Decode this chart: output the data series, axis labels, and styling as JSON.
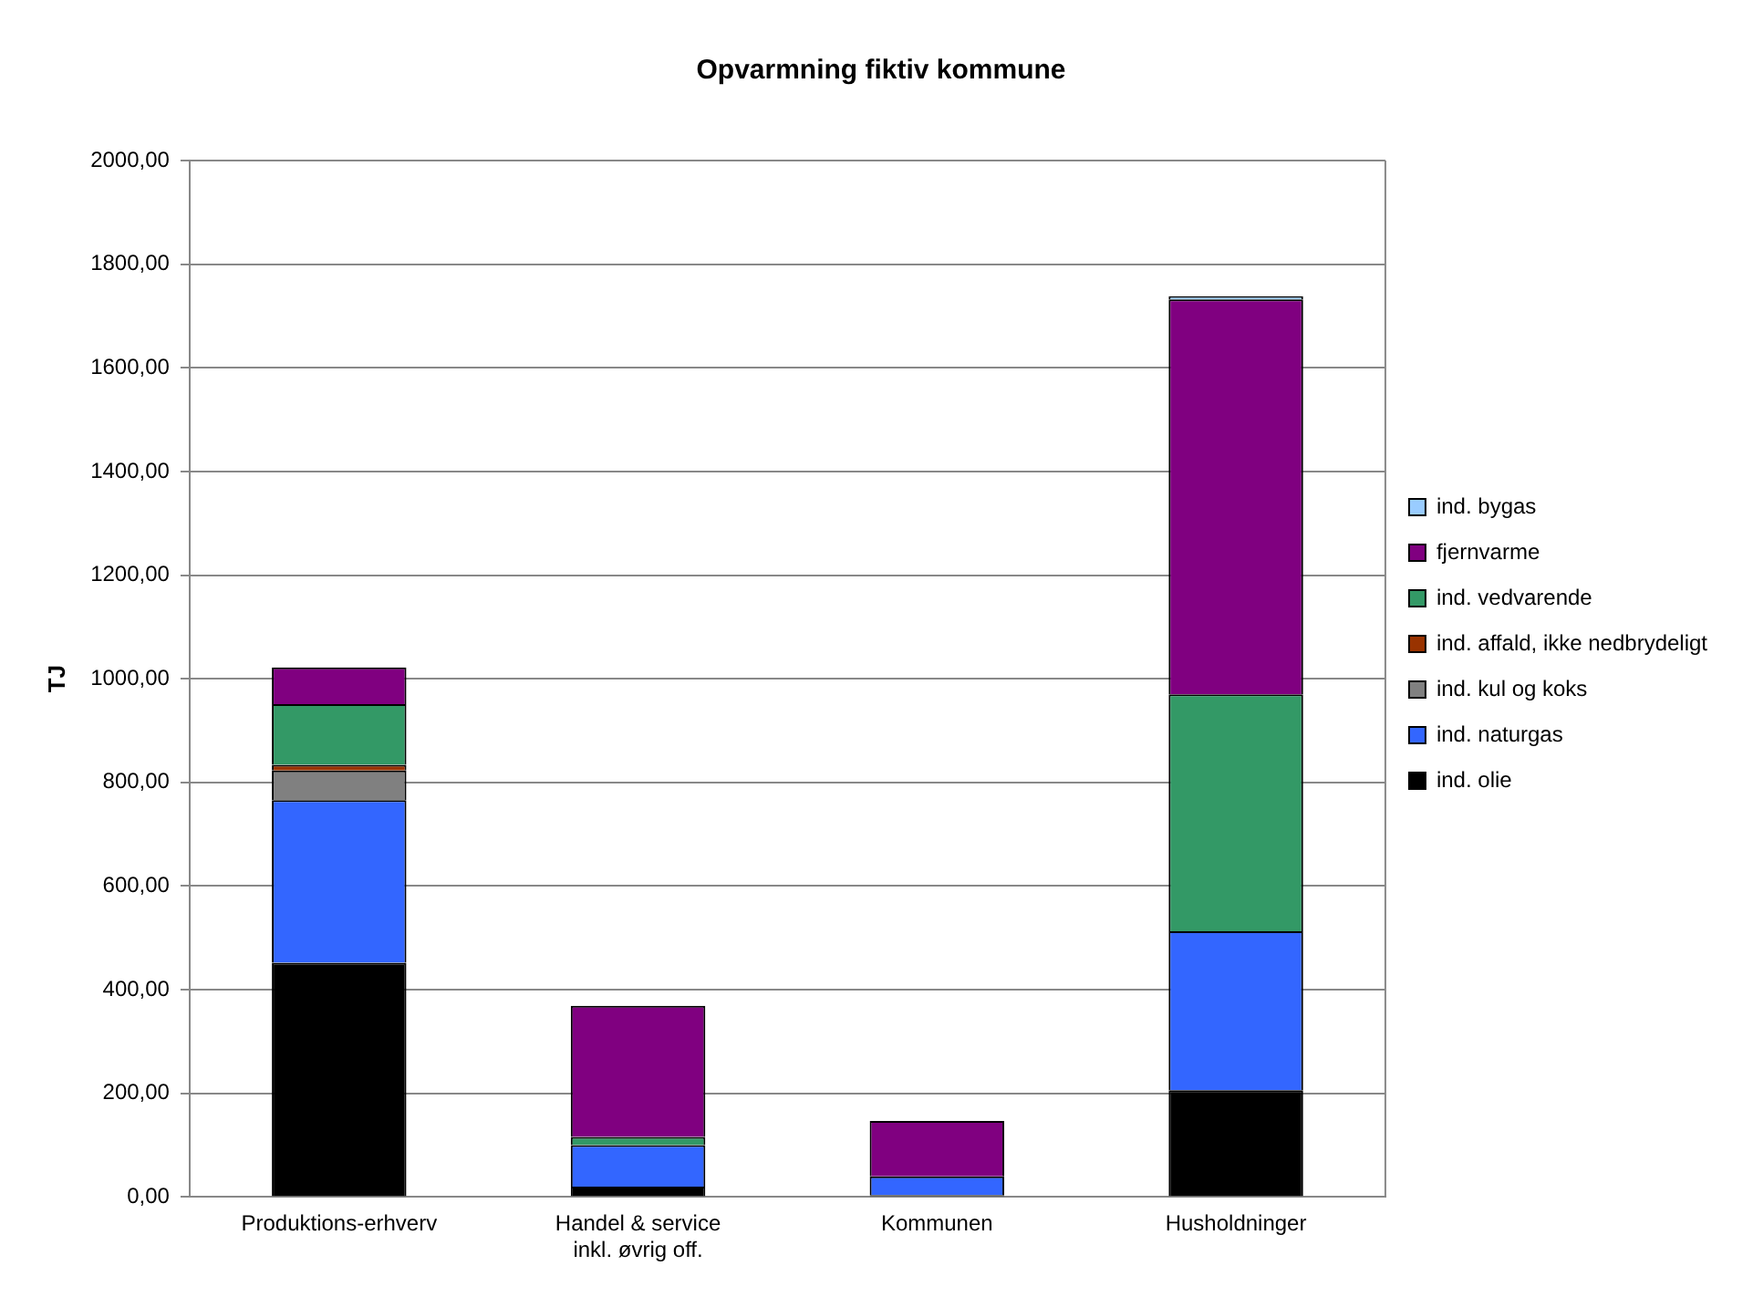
{
  "chart_data": {
    "type": "bar",
    "title": "Opvarmning fiktiv kommune",
    "ylabel": "TJ",
    "stacked": true,
    "categories": [
      "Produktions-erhverv",
      "Handel & service inkl. øvrig off.",
      "Kommunen",
      "Husholdninger"
    ],
    "series": [
      {
        "name": "ind. olie",
        "color": "#000000",
        "values": [
          452,
          20,
          4,
          206
        ]
      },
      {
        "name": "ind. naturgas",
        "color": "#3366ff",
        "values": [
          314,
          80,
          36,
          307
        ]
      },
      {
        "name": "ind. kul og koks",
        "color": "#808080",
        "values": [
          57,
          0,
          0,
          0
        ]
      },
      {
        "name": "ind. affald, ikke nedbrydeligt",
        "color": "#993300",
        "values": [
          11,
          0,
          0,
          0
        ]
      },
      {
        "name": "ind. vedvarende",
        "color": "#339966",
        "values": [
          117,
          16,
          0,
          457
        ]
      },
      {
        "name": "fjernvarme",
        "color": "#800080",
        "values": [
          71,
          253,
          107,
          762
        ]
      },
      {
        "name": "ind. bygas",
        "color": "#99ccff",
        "values": [
          0,
          0,
          0,
          6
        ]
      }
    ],
    "ylim": [
      0,
      2000
    ],
    "yticks": [
      {
        "value": 0,
        "label": "0,00"
      },
      {
        "value": 200,
        "label": "200,00"
      },
      {
        "value": 400,
        "label": "400,00"
      },
      {
        "value": 600,
        "label": "600,00"
      },
      {
        "value": 800,
        "label": "800,00"
      },
      {
        "value": 1000,
        "label": "1000,00"
      },
      {
        "value": 1200,
        "label": "1200,00"
      },
      {
        "value": 1400,
        "label": "1400,00"
      },
      {
        "value": 1600,
        "label": "1600,00"
      },
      {
        "value": 1800,
        "label": "1800,00"
      },
      {
        "value": 2000,
        "label": "2000,00"
      }
    ],
    "grid": "y",
    "legend": "right"
  }
}
